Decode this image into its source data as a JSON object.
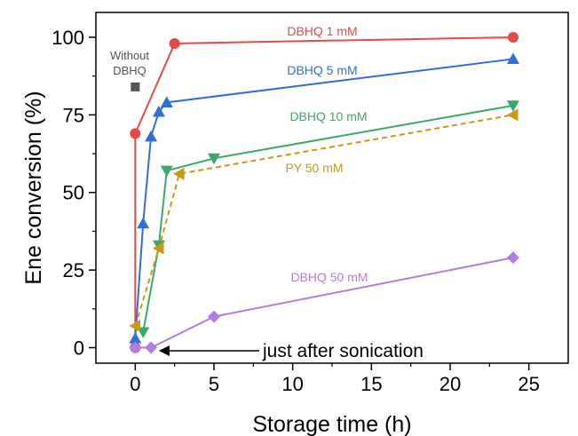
{
  "chart_data": {
    "type": "line",
    "xlabel": "Storage time (h)",
    "ylabel": "Ene conversion (%)",
    "xlim": [
      -2.5,
      27.5
    ],
    "ylim": [
      -5,
      108
    ],
    "xticks": [
      0,
      5,
      10,
      15,
      20,
      25
    ],
    "yticks": [
      0,
      25,
      50,
      75,
      100
    ],
    "xtick_labels": [
      "0",
      "5",
      "10",
      "15",
      "20",
      "25"
    ],
    "ytick_labels": [
      "0",
      "25",
      "50",
      "75",
      "100"
    ],
    "grid": false,
    "legend": "none",
    "series": [
      {
        "name": "DBHQ 1 mM",
        "color": "#e84848",
        "marker": "circle",
        "dashed": false,
        "x": [
          0,
          0,
          2.5,
          24
        ],
        "y": [
          0,
          69,
          98,
          100
        ]
      },
      {
        "name": "DBHQ 5 mM",
        "color": "#2f6fd6",
        "marker": "triangle-up",
        "dashed": false,
        "x": [
          0,
          0.5,
          1,
          1.5,
          2,
          24
        ],
        "y": [
          3,
          40,
          68,
          76,
          79,
          93
        ]
      },
      {
        "name": "DBHQ 10 mM",
        "color": "#3aaa6a",
        "marker": "triangle-down",
        "dashed": false,
        "x": [
          0.5,
          1.5,
          2,
          5,
          24
        ],
        "y": [
          5,
          33,
          57,
          61,
          78
        ]
      },
      {
        "name": "PY 50 mM",
        "color": "#c99a12",
        "marker": "triangle-left",
        "dashed": true,
        "x": [
          0,
          1.5,
          2.8,
          24
        ],
        "y": [
          7,
          32,
          56,
          75
        ]
      },
      {
        "name": "DBHQ 50 mM",
        "color": "#b07ee0",
        "marker": "diamond",
        "dashed": false,
        "x": [
          0,
          1,
          5,
          24
        ],
        "y": [
          0,
          0,
          10,
          29
        ]
      }
    ],
    "extra_point": {
      "label_lines": [
        "Without",
        "DBHQ"
      ],
      "x": 0,
      "y": 84,
      "color": "#555555",
      "marker": "square"
    },
    "annotations": [
      {
        "text": "just after sonication",
        "arrow_to_x": 1.5,
        "arrow_to_y": -1
      }
    ]
  }
}
